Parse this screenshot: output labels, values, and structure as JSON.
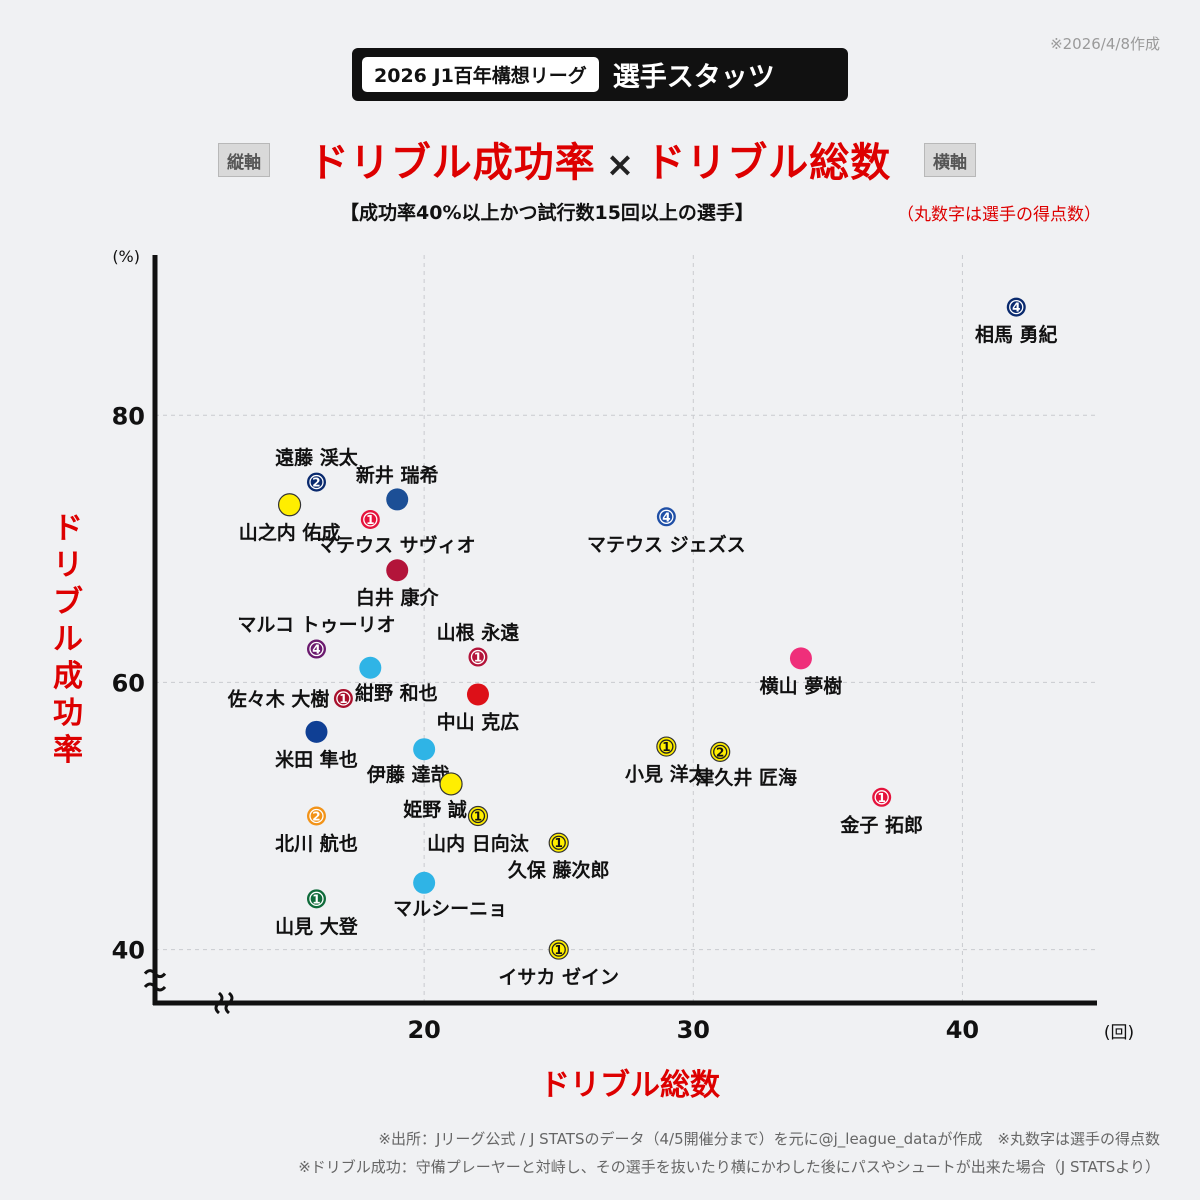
{
  "created_note": "※2026/4/8作成",
  "header": {
    "pill": "2026 J1百年構想リーグ",
    "title": "選手スタッツ"
  },
  "axis_tags": {
    "vertical": "縦軸",
    "horizontal": "横軸"
  },
  "main_title": {
    "left": "ドリブル成功率",
    "times": "×",
    "right": "ドリブル総数"
  },
  "subtitle": "【成功率40%以上かつ試行数15回以上の選手】",
  "note_red": "（丸数字は選手の得点数）",
  "footer": {
    "line1": "※出所：Jリーグ公式 / J STATSのデータ（4/5開催分まで）を元に@j_league_dataが作成　※丸数字は選手の得点数",
    "line2": "※ドリブル成功：守備プレーヤーと対峙し、その選手を抜いたり横にかわした後にパスやシュートが出来た場合（J STATSより）"
  },
  "chart_data": {
    "type": "scatter",
    "title": "ドリブル成功率 × ドリブル総数",
    "xlabel": "ドリブル総数",
    "ylabel": "ドリブル成功率",
    "x_unit": "(回)",
    "y_unit": "(%)",
    "xlim": [
      10,
      45
    ],
    "ylim": [
      36,
      92
    ],
    "x_ticks": [
      20,
      30,
      40
    ],
    "y_ticks": [
      40,
      60,
      80
    ],
    "grid": true,
    "axis_break": true,
    "points": [
      {
        "name": "相馬 勇紀",
        "x": 42,
        "y": 88.1,
        "goals": "4",
        "color": "#0a2a6e",
        "label": "below"
      },
      {
        "name": "遠藤 渓太",
        "x": 16,
        "y": 75.0,
        "goals": "2",
        "color": "#0a2a6e",
        "label": "above"
      },
      {
        "name": "新井 瑞希",
        "x": 19,
        "y": 73.7,
        "goals": "",
        "color": "#1c4f96",
        "label": "above"
      },
      {
        "name": "山之内 佑成",
        "x": 15,
        "y": 73.3,
        "goals": "",
        "color": "#ffee00",
        "label": "below"
      },
      {
        "name": "マテウス サヴィオ",
        "x": 18,
        "y": 72.2,
        "goals": "1",
        "color": "#e5133c",
        "label": "below-right"
      },
      {
        "name": "マテウス ジェズス",
        "x": 29,
        "y": 72.4,
        "goals": "4",
        "color": "#1f4fa6",
        "label": "below"
      },
      {
        "name": "白井 康介",
        "x": 19,
        "y": 68.4,
        "goals": "",
        "color": "#b3143a",
        "label": "below"
      },
      {
        "name": "マルコ トゥーリオ",
        "x": 16,
        "y": 62.5,
        "goals": "4",
        "color": "#6b1a6e",
        "label": "above"
      },
      {
        "name": "山根 永遠",
        "x": 22,
        "y": 61.9,
        "goals": "1",
        "color": "#b3143a",
        "label": "above"
      },
      {
        "name": "横山 夢樹",
        "x": 34,
        "y": 61.8,
        "goals": "",
        "color": "#ef2f7a",
        "label": "below"
      },
      {
        "name": "紺野 和也",
        "x": 18,
        "y": 61.1,
        "goals": "",
        "color": "#2fb4e6",
        "label": "below-right"
      },
      {
        "name": "佐々木 大樹",
        "x": 17,
        "y": 58.8,
        "goals": "1",
        "color": "#a8102c",
        "label": "left"
      },
      {
        "name": "中山 克広",
        "x": 22,
        "y": 59.1,
        "goals": "",
        "color": "#dd1018",
        "label": "below"
      },
      {
        "name": "米田 隼也",
        "x": 16,
        "y": 56.3,
        "goals": "",
        "color": "#0f3f94",
        "label": "below"
      },
      {
        "name": "伊藤 達哉",
        "x": 20,
        "y": 55.0,
        "goals": "",
        "color": "#2fb4e6",
        "label": "below-left"
      },
      {
        "name": "小見 洋太",
        "x": 29,
        "y": 55.2,
        "goals": "1",
        "color": "#ffee00",
        "label": "below"
      },
      {
        "name": "津久井 匠海",
        "x": 31,
        "y": 54.8,
        "goals": "2",
        "color": "#ffee00",
        "label": "below-right"
      },
      {
        "name": "姫野 誠",
        "x": 21,
        "y": 52.4,
        "goals": "",
        "color": "#ffee00",
        "label": "below-left"
      },
      {
        "name": "金子 拓郎",
        "x": 37,
        "y": 51.4,
        "goals": "1",
        "color": "#e5133c",
        "label": "below"
      },
      {
        "name": "北川 航也",
        "x": 16,
        "y": 50.0,
        "goals": "2",
        "color": "#f29318",
        "label": "below"
      },
      {
        "name": "山内 日向汰",
        "x": 22,
        "y": 50.0,
        "goals": "1",
        "color": "#ffee00",
        "label": "below"
      },
      {
        "name": "久保 藤次郎",
        "x": 25,
        "y": 48.0,
        "goals": "1",
        "color": "#ffee00",
        "label": "below"
      },
      {
        "name": "マルシーニョ",
        "x": 20,
        "y": 45.0,
        "goals": "",
        "color": "#2fb4e6",
        "label": "below-right"
      },
      {
        "name": "山見 大登",
        "x": 16,
        "y": 43.8,
        "goals": "1",
        "color": "#0f6b3a",
        "label": "below"
      },
      {
        "name": "イサカ ゼイン",
        "x": 25,
        "y": 40.0,
        "goals": "1",
        "color": "#ffee00",
        "label": "below"
      }
    ]
  }
}
